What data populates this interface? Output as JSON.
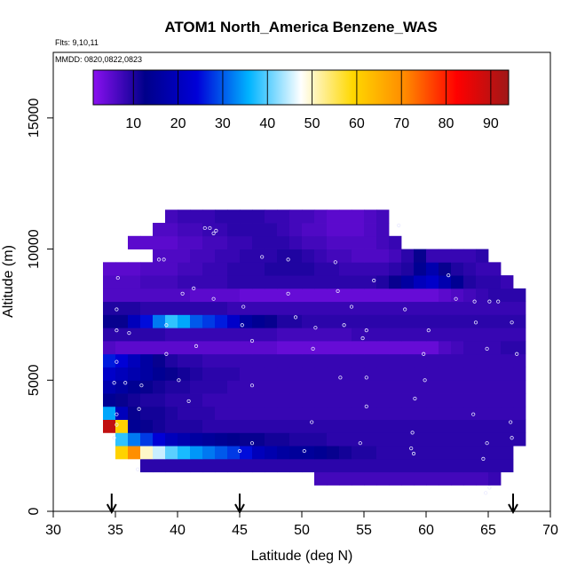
{
  "chart_data": {
    "type": "heatmap",
    "title": "ATOM1 North_America Benzene_WAS",
    "flights_note": "Flts: 9,10,11",
    "dates_note": "MMDD: 0820,0822,0823",
    "xlabel": "Latitude (deg N)",
    "ylabel": "Altitude (m)",
    "xlim": [
      30,
      70
    ],
    "ylim": [
      0,
      17500
    ],
    "x_ticks": [
      30,
      35,
      40,
      45,
      50,
      55,
      60,
      65,
      70
    ],
    "y_ticks": [
      0,
      5000,
      10000,
      15000
    ],
    "colorbar": {
      "ticks": [
        10,
        20,
        30,
        40,
        50,
        60,
        70,
        80,
        90
      ],
      "range": [
        1,
        94
      ],
      "colors": [
        "#8a10f0",
        "#00008a",
        "#0000d8",
        "#00b4ff",
        "#ffffff",
        "#ffd800",
        "#ff8a00",
        "#ff0000",
        "#a01818"
      ]
    },
    "cell_size": {
      "dlat": 1.0,
      "dalt": 500
    },
    "rows": [
      {
        "alt": 1000,
        "lat_start": 51,
        "values": [
          7,
          7,
          7,
          7,
          7,
          7,
          7,
          7,
          7,
          7,
          7,
          7,
          7,
          7,
          8
        ]
      },
      {
        "alt": 1500,
        "lat_start": 37,
        "values": [
          9,
          9,
          9,
          9,
          9,
          9,
          9,
          9,
          9,
          9,
          9,
          9,
          9,
          9,
          9,
          9,
          9,
          9,
          9,
          9,
          9,
          9,
          9,
          9,
          9,
          9,
          9,
          9,
          9,
          9
        ]
      },
      {
        "alt": 2000,
        "lat_start": 35,
        "values": [
          60,
          70,
          50,
          45,
          40,
          37,
          34,
          32,
          30,
          28,
          25,
          20,
          18,
          16,
          15,
          15,
          14,
          12,
          11,
          10,
          10,
          9,
          9,
          9,
          9,
          9,
          9,
          9,
          9,
          9,
          9,
          9
        ]
      },
      {
        "alt": 2500,
        "lat_start": 35,
        "values": [
          38,
          32,
          28,
          24,
          20,
          18,
          16,
          15,
          14,
          13,
          12,
          12,
          11,
          11,
          10,
          10,
          10,
          9,
          9,
          9,
          9,
          9,
          9,
          9,
          9,
          9,
          9,
          9,
          9,
          9,
          9,
          9,
          9
        ]
      },
      {
        "alt": 3000,
        "lat_start": 34,
        "values": [
          90,
          60,
          14,
          12,
          11,
          10,
          10,
          10,
          9,
          9,
          9,
          9,
          9,
          9,
          9,
          9,
          9,
          9,
          9,
          9,
          9,
          9,
          9,
          9,
          9,
          9,
          9,
          9,
          9,
          9,
          9,
          9,
          9,
          9
        ]
      },
      {
        "alt": 3500,
        "lat_start": 34,
        "values": [
          35,
          20,
          12,
          11,
          11,
          10,
          9,
          9,
          9,
          8,
          8,
          8,
          8,
          8,
          8,
          8,
          8,
          8,
          8,
          8,
          8,
          8,
          8,
          8,
          8,
          8,
          8,
          8,
          8,
          8,
          8,
          8,
          8,
          8
        ]
      },
      {
        "alt": 4000,
        "lat_start": 34,
        "values": [
          14,
          12,
          11,
          10,
          10,
          9,
          9,
          9,
          8,
          8,
          8,
          8,
          8,
          8,
          8,
          8,
          8,
          8,
          8,
          8,
          8,
          8,
          8,
          8,
          8,
          8,
          8,
          8,
          8,
          8,
          8,
          8,
          8,
          8
        ]
      },
      {
        "alt": 4500,
        "lat_start": 34,
        "values": [
          18,
          16,
          14,
          12,
          11,
          10,
          10,
          9,
          9,
          9,
          8,
          8,
          8,
          8,
          8,
          8,
          8,
          8,
          8,
          8,
          8,
          8,
          8,
          8,
          8,
          8,
          8,
          8,
          8,
          8,
          8,
          8,
          8,
          8
        ]
      },
      {
        "alt": 5000,
        "lat_start": 34,
        "values": [
          22,
          20,
          18,
          16,
          14,
          12,
          11,
          10,
          9,
          9,
          9,
          8,
          8,
          8,
          8,
          8,
          8,
          8,
          8,
          8,
          8,
          8,
          8,
          8,
          8,
          8,
          8,
          8,
          8,
          8,
          8,
          8,
          8,
          8
        ]
      },
      {
        "alt": 5500,
        "lat_start": 34,
        "values": [
          26,
          24,
          20,
          16,
          12,
          10,
          9,
          9,
          8,
          8,
          8,
          8,
          8,
          8,
          8,
          8,
          8,
          8,
          8,
          8,
          8,
          8,
          8,
          8,
          8,
          8,
          8,
          8,
          8,
          8,
          8,
          8,
          8,
          8
        ]
      },
      {
        "alt": 6000,
        "lat_start": 34,
        "values": [
          6,
          5,
          5,
          5,
          5,
          5,
          5,
          5,
          5,
          5,
          5,
          5,
          5,
          5,
          4,
          4,
          4,
          4,
          4,
          4,
          4,
          4,
          4,
          4,
          4,
          4,
          4,
          6,
          7,
          8,
          8,
          8,
          9,
          9
        ]
      },
      {
        "alt": 6500,
        "lat_start": 34,
        "values": [
          9,
          9,
          9,
          9,
          9,
          8,
          8,
          8,
          8,
          8,
          8,
          8,
          8,
          8,
          7,
          7,
          7,
          7,
          7,
          7,
          8,
          8,
          8,
          8,
          8,
          8,
          8,
          8,
          8,
          8,
          8,
          8,
          8,
          8
        ]
      },
      {
        "alt": 7000,
        "lat_start": 34,
        "values": [
          12,
          12,
          20,
          25,
          32,
          38,
          35,
          30,
          28,
          26,
          22,
          16,
          14,
          12,
          10,
          10,
          9,
          9,
          9,
          9,
          9,
          9,
          9,
          9,
          9,
          9,
          9,
          9,
          9,
          9,
          9,
          9,
          9,
          9
        ]
      },
      {
        "alt": 7500,
        "lat_start": 34,
        "values": [
          10,
          10,
          10,
          9,
          9,
          9,
          9,
          9,
          9,
          9,
          8,
          8,
          8,
          8,
          8,
          8,
          8,
          8,
          8,
          8,
          8,
          8,
          8,
          8,
          8,
          8,
          8,
          8,
          8,
          8,
          8,
          8,
          8,
          8
        ]
      },
      {
        "alt": 8000,
        "lat_start": 34,
        "values": [
          6,
          6,
          6,
          6,
          6,
          6,
          6,
          5,
          5,
          5,
          5,
          4,
          4,
          4,
          4,
          4,
          4,
          4,
          4,
          4,
          4,
          4,
          4,
          4,
          4,
          4,
          4,
          5,
          6,
          7,
          8,
          9,
          9,
          9
        ]
      },
      {
        "alt": 8500,
        "lat_start": 34,
        "values": [
          6,
          6,
          6,
          7,
          7,
          7,
          8,
          8,
          8,
          8,
          9,
          9,
          9,
          9,
          9,
          9,
          9,
          9,
          9,
          9,
          9,
          9,
          10,
          12,
          16,
          20,
          22,
          18,
          14,
          10,
          9,
          9,
          8
        ]
      },
      {
        "alt": 9000,
        "lat_start": 34,
        "values": [
          5,
          5,
          5,
          6,
          6,
          6,
          7,
          7,
          8,
          8,
          9,
          9,
          9,
          10,
          10,
          10,
          10,
          9,
          9,
          8,
          8,
          8,
          8,
          9,
          10,
          14,
          18,
          12,
          10,
          9,
          8,
          8
        ]
      },
      {
        "alt": 9500,
        "lat_start": 38,
        "values": [
          6,
          6,
          6,
          7,
          7,
          8,
          8,
          9,
          9,
          9,
          10,
          10,
          9,
          8,
          7,
          7,
          6,
          6,
          6,
          7,
          9,
          12,
          8,
          8,
          8,
          8,
          9
        ]
      },
      {
        "alt": 10000,
        "lat_start": 36,
        "values": [
          5,
          5,
          5,
          5,
          6,
          6,
          7,
          7,
          8,
          8,
          9,
          9,
          9,
          8,
          7,
          7,
          6,
          6,
          6,
          6,
          7,
          8
        ]
      },
      {
        "alt": 10500,
        "lat_start": 38,
        "values": [
          6,
          6,
          7,
          7,
          8,
          8,
          9,
          9,
          9,
          9,
          8,
          7,
          6,
          6,
          5,
          5,
          5,
          6,
          7
        ]
      },
      {
        "alt": 11000,
        "lat_start": 39,
        "values": [
          7,
          8,
          8,
          8,
          9,
          9,
          9,
          9,
          8,
          8,
          7,
          7,
          6,
          5,
          5,
          5,
          6,
          7
        ]
      }
    ],
    "samples": [
      [
        36.8,
        1600
      ],
      [
        50.2,
        2300
      ],
      [
        58.8,
        2400
      ],
      [
        59.0,
        2200
      ],
      [
        64.6,
        2000
      ],
      [
        65.1,
        900
      ],
      [
        64.8,
        700
      ],
      [
        34.9,
        2800
      ],
      [
        35.1,
        3300
      ],
      [
        45.0,
        2300
      ],
      [
        46.0,
        2600
      ],
      [
        54.7,
        2600
      ],
      [
        58.9,
        3000
      ],
      [
        64.9,
        2600
      ],
      [
        66.9,
        2800
      ],
      [
        35.1,
        3700
      ],
      [
        36.9,
        3900
      ],
      [
        40.9,
        4200
      ],
      [
        50.8,
        3400
      ],
      [
        55.2,
        4000
      ],
      [
        59.1,
        4300
      ],
      [
        63.8,
        3700
      ],
      [
        66.8,
        3400
      ],
      [
        34.9,
        4900
      ],
      [
        35.8,
        4900
      ],
      [
        37.1,
        4800
      ],
      [
        40.1,
        5000
      ],
      [
        46.0,
        4800
      ],
      [
        53.1,
        5100
      ],
      [
        55.2,
        5100
      ],
      [
        59.9,
        5000
      ],
      [
        35.1,
        5700
      ],
      [
        39.1,
        6000
      ],
      [
        41.5,
        6300
      ],
      [
        46.0,
        6500
      ],
      [
        50.9,
        6200
      ],
      [
        54.9,
        6600
      ],
      [
        59.8,
        6000
      ],
      [
        64.9,
        6200
      ],
      [
        67.3,
        6000
      ],
      [
        35.1,
        6900
      ],
      [
        36.1,
        6800
      ],
      [
        39.1,
        7100
      ],
      [
        45.2,
        7100
      ],
      [
        49.5,
        7400
      ],
      [
        51.1,
        7000
      ],
      [
        53.4,
        7100
      ],
      [
        55.2,
        6900
      ],
      [
        60.2,
        6900
      ],
      [
        64.0,
        7200
      ],
      [
        66.9,
        7200
      ],
      [
        35.1,
        7700
      ],
      [
        40.4,
        8300
      ],
      [
        41.3,
        8500
      ],
      [
        42.9,
        8100
      ],
      [
        45.3,
        7800
      ],
      [
        48.9,
        8300
      ],
      [
        52.9,
        8400
      ],
      [
        54.0,
        7800
      ],
      [
        58.3,
        7700
      ],
      [
        62.4,
        8100
      ],
      [
        63.9,
        8000
      ],
      [
        65.1,
        8000
      ],
      [
        65.8,
        8000
      ],
      [
        35.2,
        8900
      ],
      [
        38.5,
        9600
      ],
      [
        38.9,
        9600
      ],
      [
        46.8,
        9700
      ],
      [
        48.9,
        9600
      ],
      [
        52.7,
        9500
      ],
      [
        55.8,
        8800
      ],
      [
        61.8,
        9000
      ],
      [
        42.2,
        10800
      ],
      [
        42.6,
        10800
      ],
      [
        42.9,
        10600
      ],
      [
        43.1,
        10700
      ],
      [
        57.8,
        10900
      ]
    ]
  }
}
